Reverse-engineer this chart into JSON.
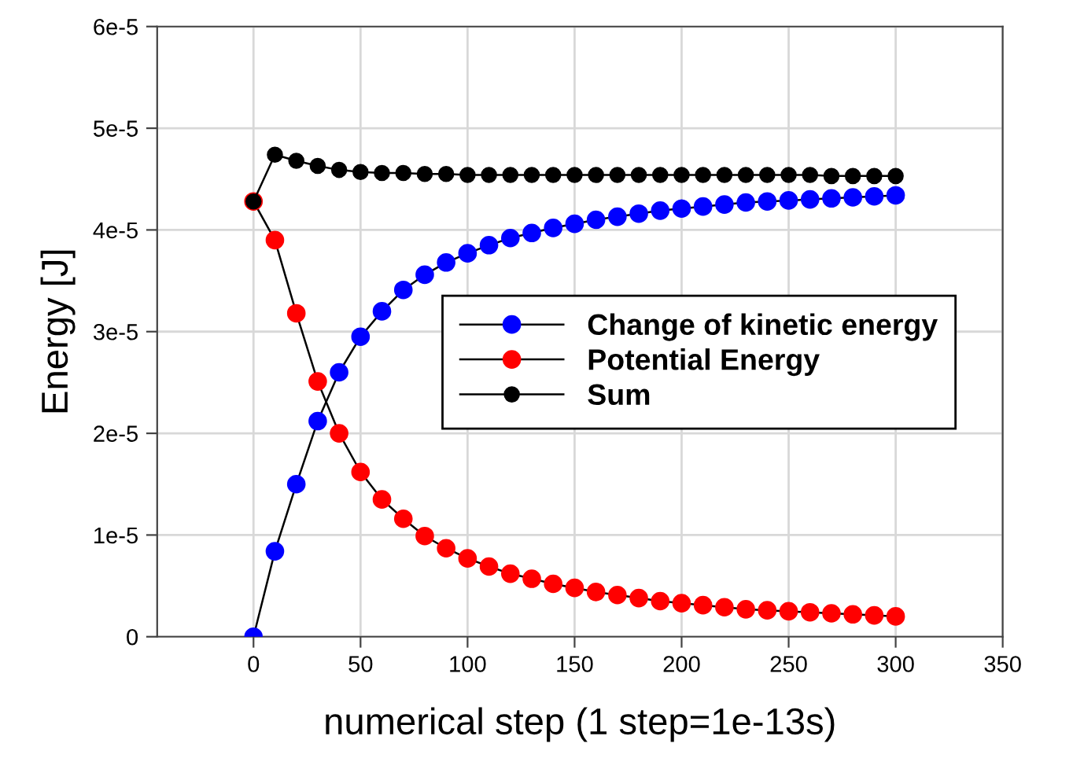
{
  "chart_data": {
    "type": "line",
    "xlabel": "numerical step (1 step=1e-13s)",
    "ylabel": "Energy [J]",
    "x": [
      0,
      10,
      20,
      30,
      40,
      50,
      60,
      70,
      80,
      90,
      100,
      110,
      120,
      130,
      140,
      150,
      160,
      170,
      180,
      190,
      200,
      210,
      220,
      230,
      240,
      250,
      260,
      270,
      280,
      290,
      300
    ],
    "series": [
      {
        "name": "Change of kinetic energy",
        "color": "#0000ff",
        "values": [
          0,
          8.4e-06,
          1.5e-05,
          2.12e-05,
          2.6e-05,
          2.95e-05,
          3.2e-05,
          3.41e-05,
          3.56e-05,
          3.68e-05,
          3.77e-05,
          3.85e-05,
          3.92e-05,
          3.97e-05,
          4.02e-05,
          4.06e-05,
          4.1e-05,
          4.13e-05,
          4.16e-05,
          4.19e-05,
          4.21e-05,
          4.23e-05,
          4.25e-05,
          4.27e-05,
          4.28e-05,
          4.29e-05,
          4.3e-05,
          4.31e-05,
          4.32e-05,
          4.33e-05,
          4.34e-05
        ]
      },
      {
        "name": "Potential Energy",
        "color": "#ff0000",
        "values": [
          4.28e-05,
          3.9e-05,
          3.18e-05,
          2.51e-05,
          2e-05,
          1.62e-05,
          1.35e-05,
          1.16e-05,
          9.9e-06,
          8.7e-06,
          7.7e-06,
          6.9e-06,
          6.2e-06,
          5.7e-06,
          5.2e-06,
          4.8e-06,
          4.4e-06,
          4.1e-06,
          3.8e-06,
          3.5e-06,
          3.3e-06,
          3.1e-06,
          2.9e-06,
          2.7e-06,
          2.6e-06,
          2.5e-06,
          2.4e-06,
          2.3e-06,
          2.2e-06,
          2.1e-06,
          2e-06
        ]
      },
      {
        "name": "Sum",
        "color": "#000000",
        "values": [
          4.28e-05,
          4.74e-05,
          4.68e-05,
          4.63e-05,
          4.59e-05,
          4.57e-05,
          4.56e-05,
          4.56e-05,
          4.55e-05,
          4.55e-05,
          4.54e-05,
          4.54e-05,
          4.54e-05,
          4.54e-05,
          4.54e-05,
          4.54e-05,
          4.54e-05,
          4.54e-05,
          4.54e-05,
          4.54e-05,
          4.54e-05,
          4.54e-05,
          4.54e-05,
          4.54e-05,
          4.54e-05,
          4.54e-05,
          4.54e-05,
          4.53e-05,
          4.53e-05,
          4.53e-05,
          4.53e-05
        ]
      }
    ],
    "xlim": [
      -45,
      350
    ],
    "xticks": [
      0,
      50,
      100,
      150,
      200,
      250,
      300,
      350
    ],
    "ylim": [
      0,
      6e-05
    ],
    "yticks": [
      0,
      {
        "value": 1e-05,
        "label": "1e-5"
      },
      {
        "value": 2e-05,
        "label": "2e-5"
      },
      {
        "value": 3e-05,
        "label": "3e-5"
      },
      {
        "value": 4e-05,
        "label": "4e-5"
      },
      {
        "value": 5e-05,
        "label": "5e-5"
      },
      {
        "value": 6e-05,
        "label": "6e-5"
      }
    ],
    "grid": true,
    "legend": "right",
    "marker": "circle",
    "line_style": "solid"
  }
}
